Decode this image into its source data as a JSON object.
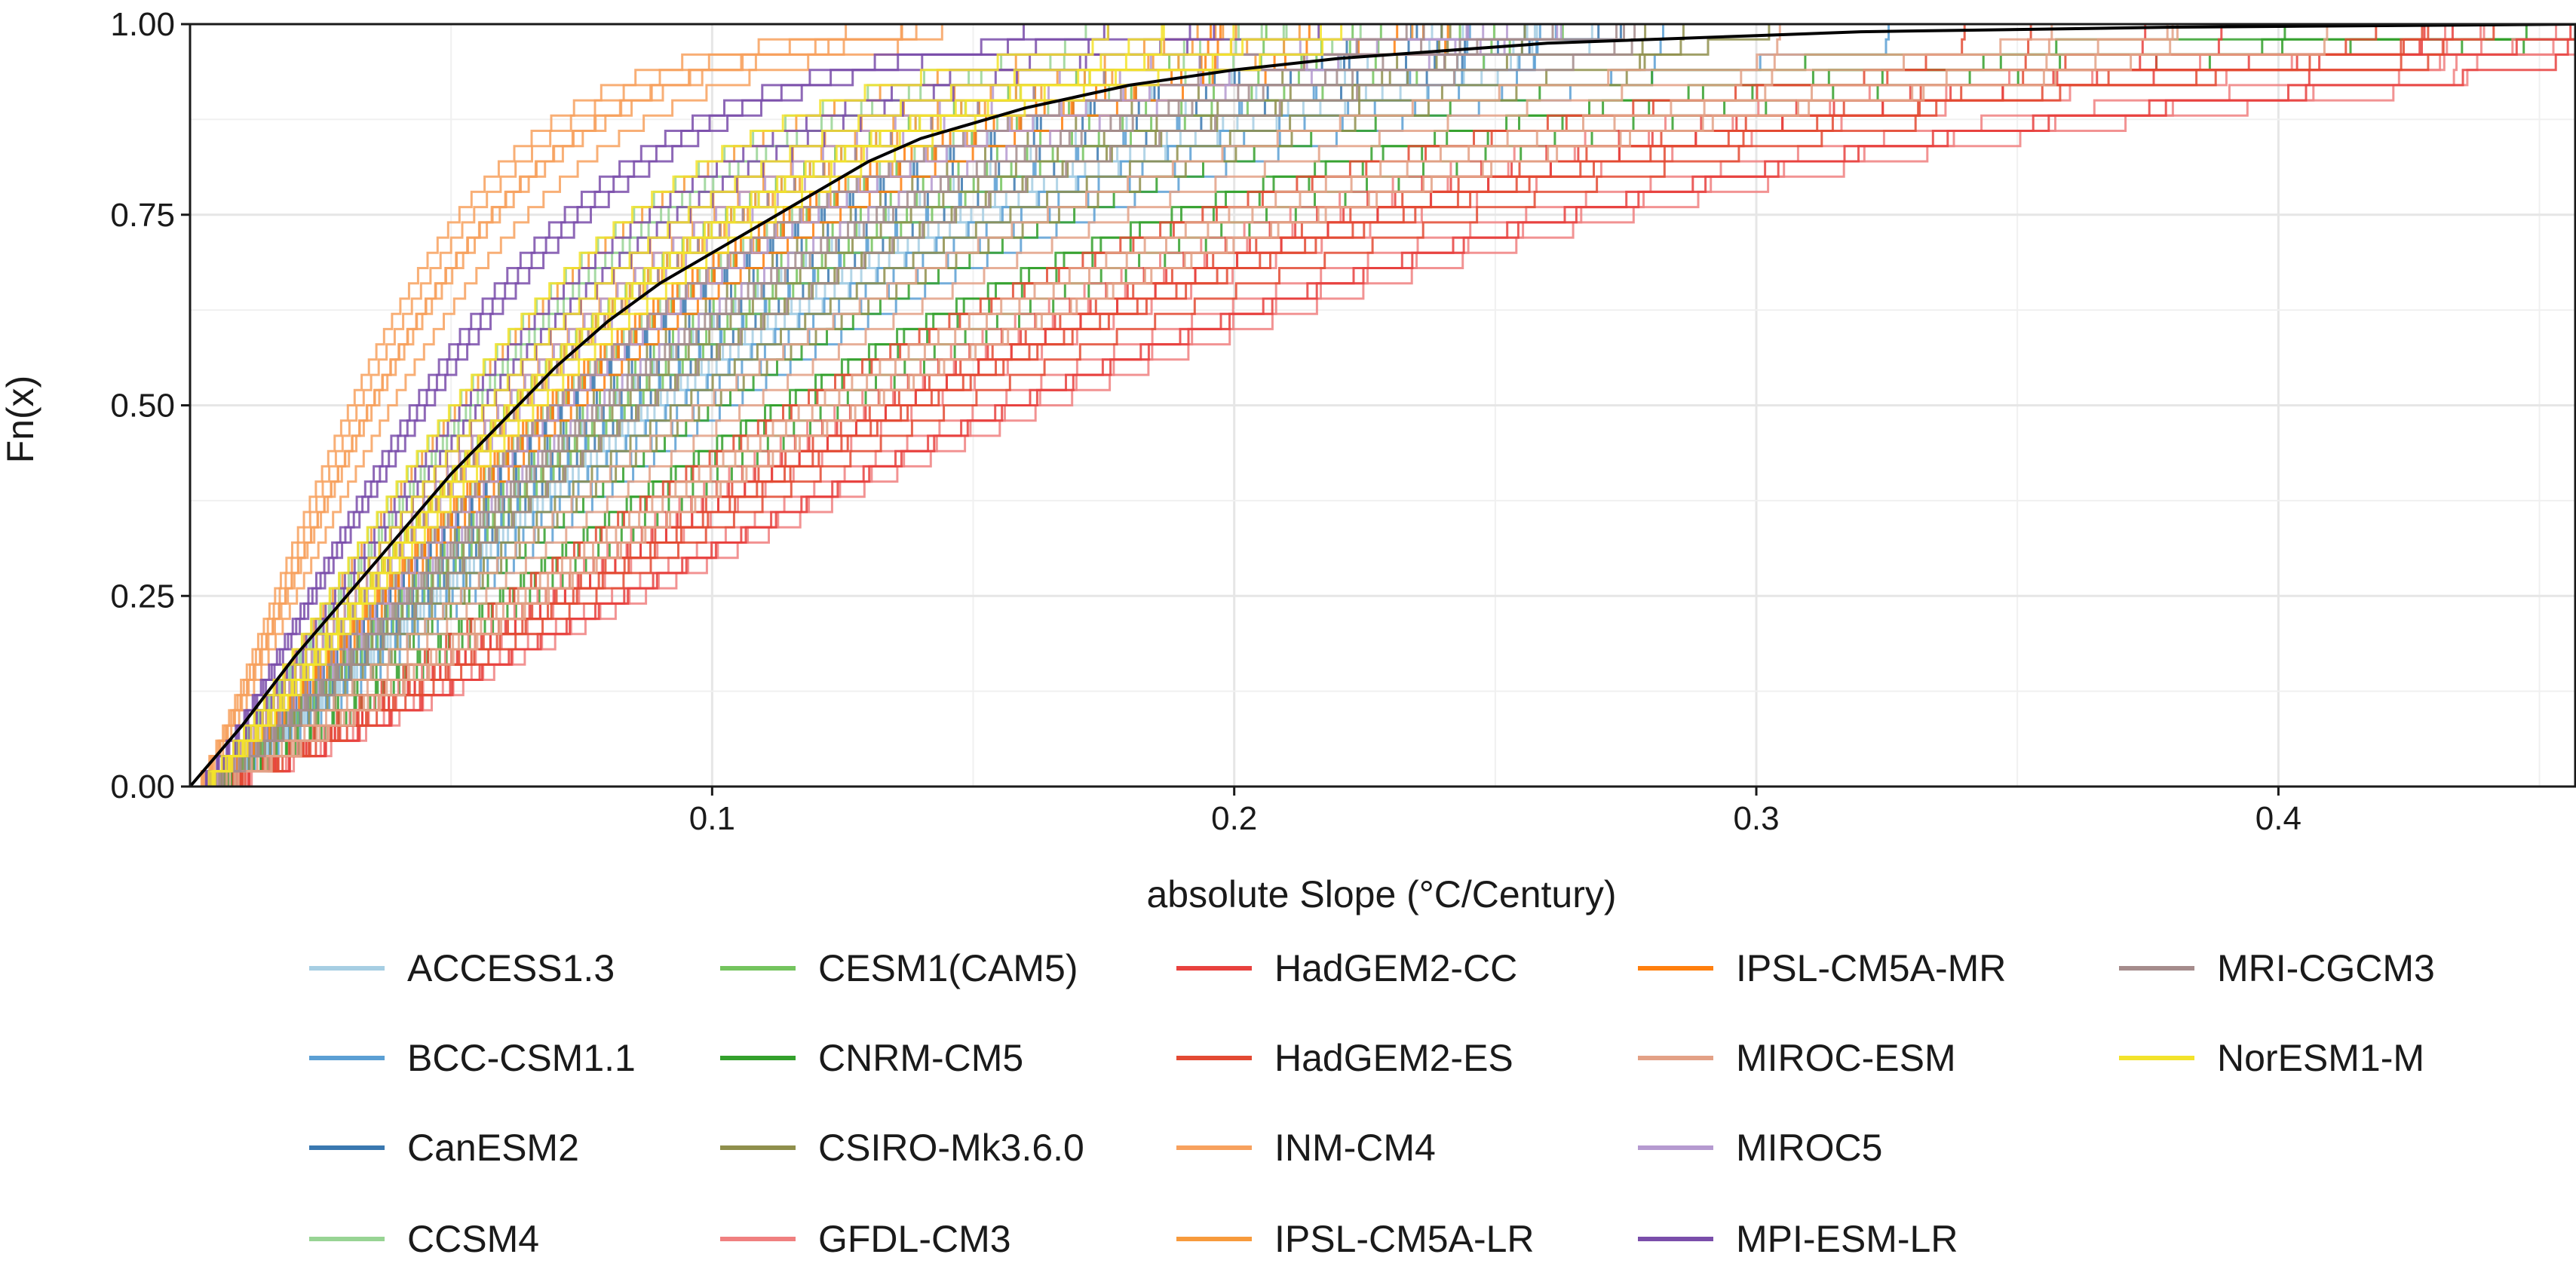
{
  "chart_data": {
    "type": "line",
    "subtype": "ecdf_step",
    "xlabel": "absolute Slope (°C/Century)",
    "ylabel": "Fn(x)",
    "xlim": [
      0.0,
      0.457
    ],
    "ylim": [
      0.0,
      1.0
    ],
    "x_ticks": [
      0.1,
      0.2,
      0.3,
      0.4
    ],
    "x_tick_labels": [
      "0.1",
      "0.2",
      "0.3",
      "0.4"
    ],
    "y_ticks": [
      0.0,
      0.25,
      0.5,
      0.75,
      1.0
    ],
    "y_tick_labels": [
      "0.00",
      "0.25",
      "0.50",
      "0.75",
      "1.00"
    ],
    "grid": true,
    "legend_position": "bottom",
    "series": [
      {
        "name": "ACCESS1.3",
        "color": "#a6cee3",
        "members": 6,
        "median_slope": 0.083,
        "max_slope": 0.28
      },
      {
        "name": "BCC-CSM1.1",
        "color": "#5b9fd4",
        "members": 6,
        "median_slope": 0.09,
        "max_slope": 0.29
      },
      {
        "name": "CanESM2",
        "color": "#3a78b0",
        "members": 6,
        "median_slope": 0.08,
        "max_slope": 0.27
      },
      {
        "name": "CCSM4",
        "color": "#98d494",
        "members": 6,
        "median_slope": 0.058,
        "max_slope": 0.2
      },
      {
        "name": "CESM1(CAM5)",
        "color": "#74c45e",
        "members": 6,
        "median_slope": 0.072,
        "max_slope": 0.24
      },
      {
        "name": "CNRM-CM5",
        "color": "#33a02c",
        "members": 6,
        "median_slope": 0.108,
        "max_slope": 0.46
      },
      {
        "name": "CSIRO-Mk3.6.0",
        "color": "#8f8f4c",
        "members": 6,
        "median_slope": 0.085,
        "max_slope": 0.28
      },
      {
        "name": "GFDL-CM3",
        "color": "#f08080",
        "members": 6,
        "median_slope": 0.15,
        "max_slope": 0.44
      },
      {
        "name": "HadGEM2-CC",
        "color": "#e8413e",
        "members": 6,
        "median_slope": 0.14,
        "max_slope": 0.42
      },
      {
        "name": "HadGEM2-ES",
        "color": "#e34a33",
        "members": 6,
        "median_slope": 0.135,
        "max_slope": 0.4
      },
      {
        "name": "INM-CM4",
        "color": "#f7a15e",
        "members": 6,
        "median_slope": 0.035,
        "max_slope": 0.14
      },
      {
        "name": "IPSL-CM5A-LR",
        "color": "#f79a3c",
        "members": 6,
        "median_slope": 0.06,
        "max_slope": 0.22
      },
      {
        "name": "IPSL-CM5A-MR",
        "color": "#ff7f0e",
        "members": 6,
        "median_slope": 0.065,
        "max_slope": 0.22
      },
      {
        "name": "MIROC-ESM",
        "color": "#e3a186",
        "members": 6,
        "median_slope": 0.11,
        "max_slope": 0.36
      },
      {
        "name": "MIROC5",
        "color": "#b59ad0",
        "members": 6,
        "median_slope": 0.07,
        "max_slope": 0.25
      },
      {
        "name": "MPI-ESM-LR",
        "color": "#7a4eaa",
        "members": 6,
        "median_slope": 0.05,
        "max_slope": 0.2
      },
      {
        "name": "MRI-CGCM3",
        "color": "#a58c8c",
        "members": 6,
        "median_slope": 0.075,
        "max_slope": 0.26
      },
      {
        "name": "NorESM1-M",
        "color": "#f3e32a",
        "members": 6,
        "median_slope": 0.06,
        "max_slope": 0.21
      }
    ],
    "overall": {
      "color": "#000000",
      "x": [
        0.0,
        0.01,
        0.02,
        0.03,
        0.04,
        0.05,
        0.06,
        0.07,
        0.08,
        0.09,
        0.1,
        0.11,
        0.12,
        0.13,
        0.14,
        0.15,
        0.16,
        0.17,
        0.18,
        0.19,
        0.2,
        0.22,
        0.24,
        0.26,
        0.28,
        0.3,
        0.32,
        0.34,
        0.36,
        0.38,
        0.4,
        0.42,
        0.44,
        0.457
      ],
      "y": [
        0.0,
        0.08,
        0.17,
        0.25,
        0.33,
        0.41,
        0.48,
        0.55,
        0.61,
        0.66,
        0.7,
        0.74,
        0.78,
        0.82,
        0.85,
        0.87,
        0.89,
        0.905,
        0.92,
        0.93,
        0.94,
        0.955,
        0.965,
        0.975,
        0.98,
        0.985,
        0.99,
        0.992,
        0.994,
        0.996,
        0.997,
        0.998,
        0.999,
        1.0
      ]
    }
  }
}
